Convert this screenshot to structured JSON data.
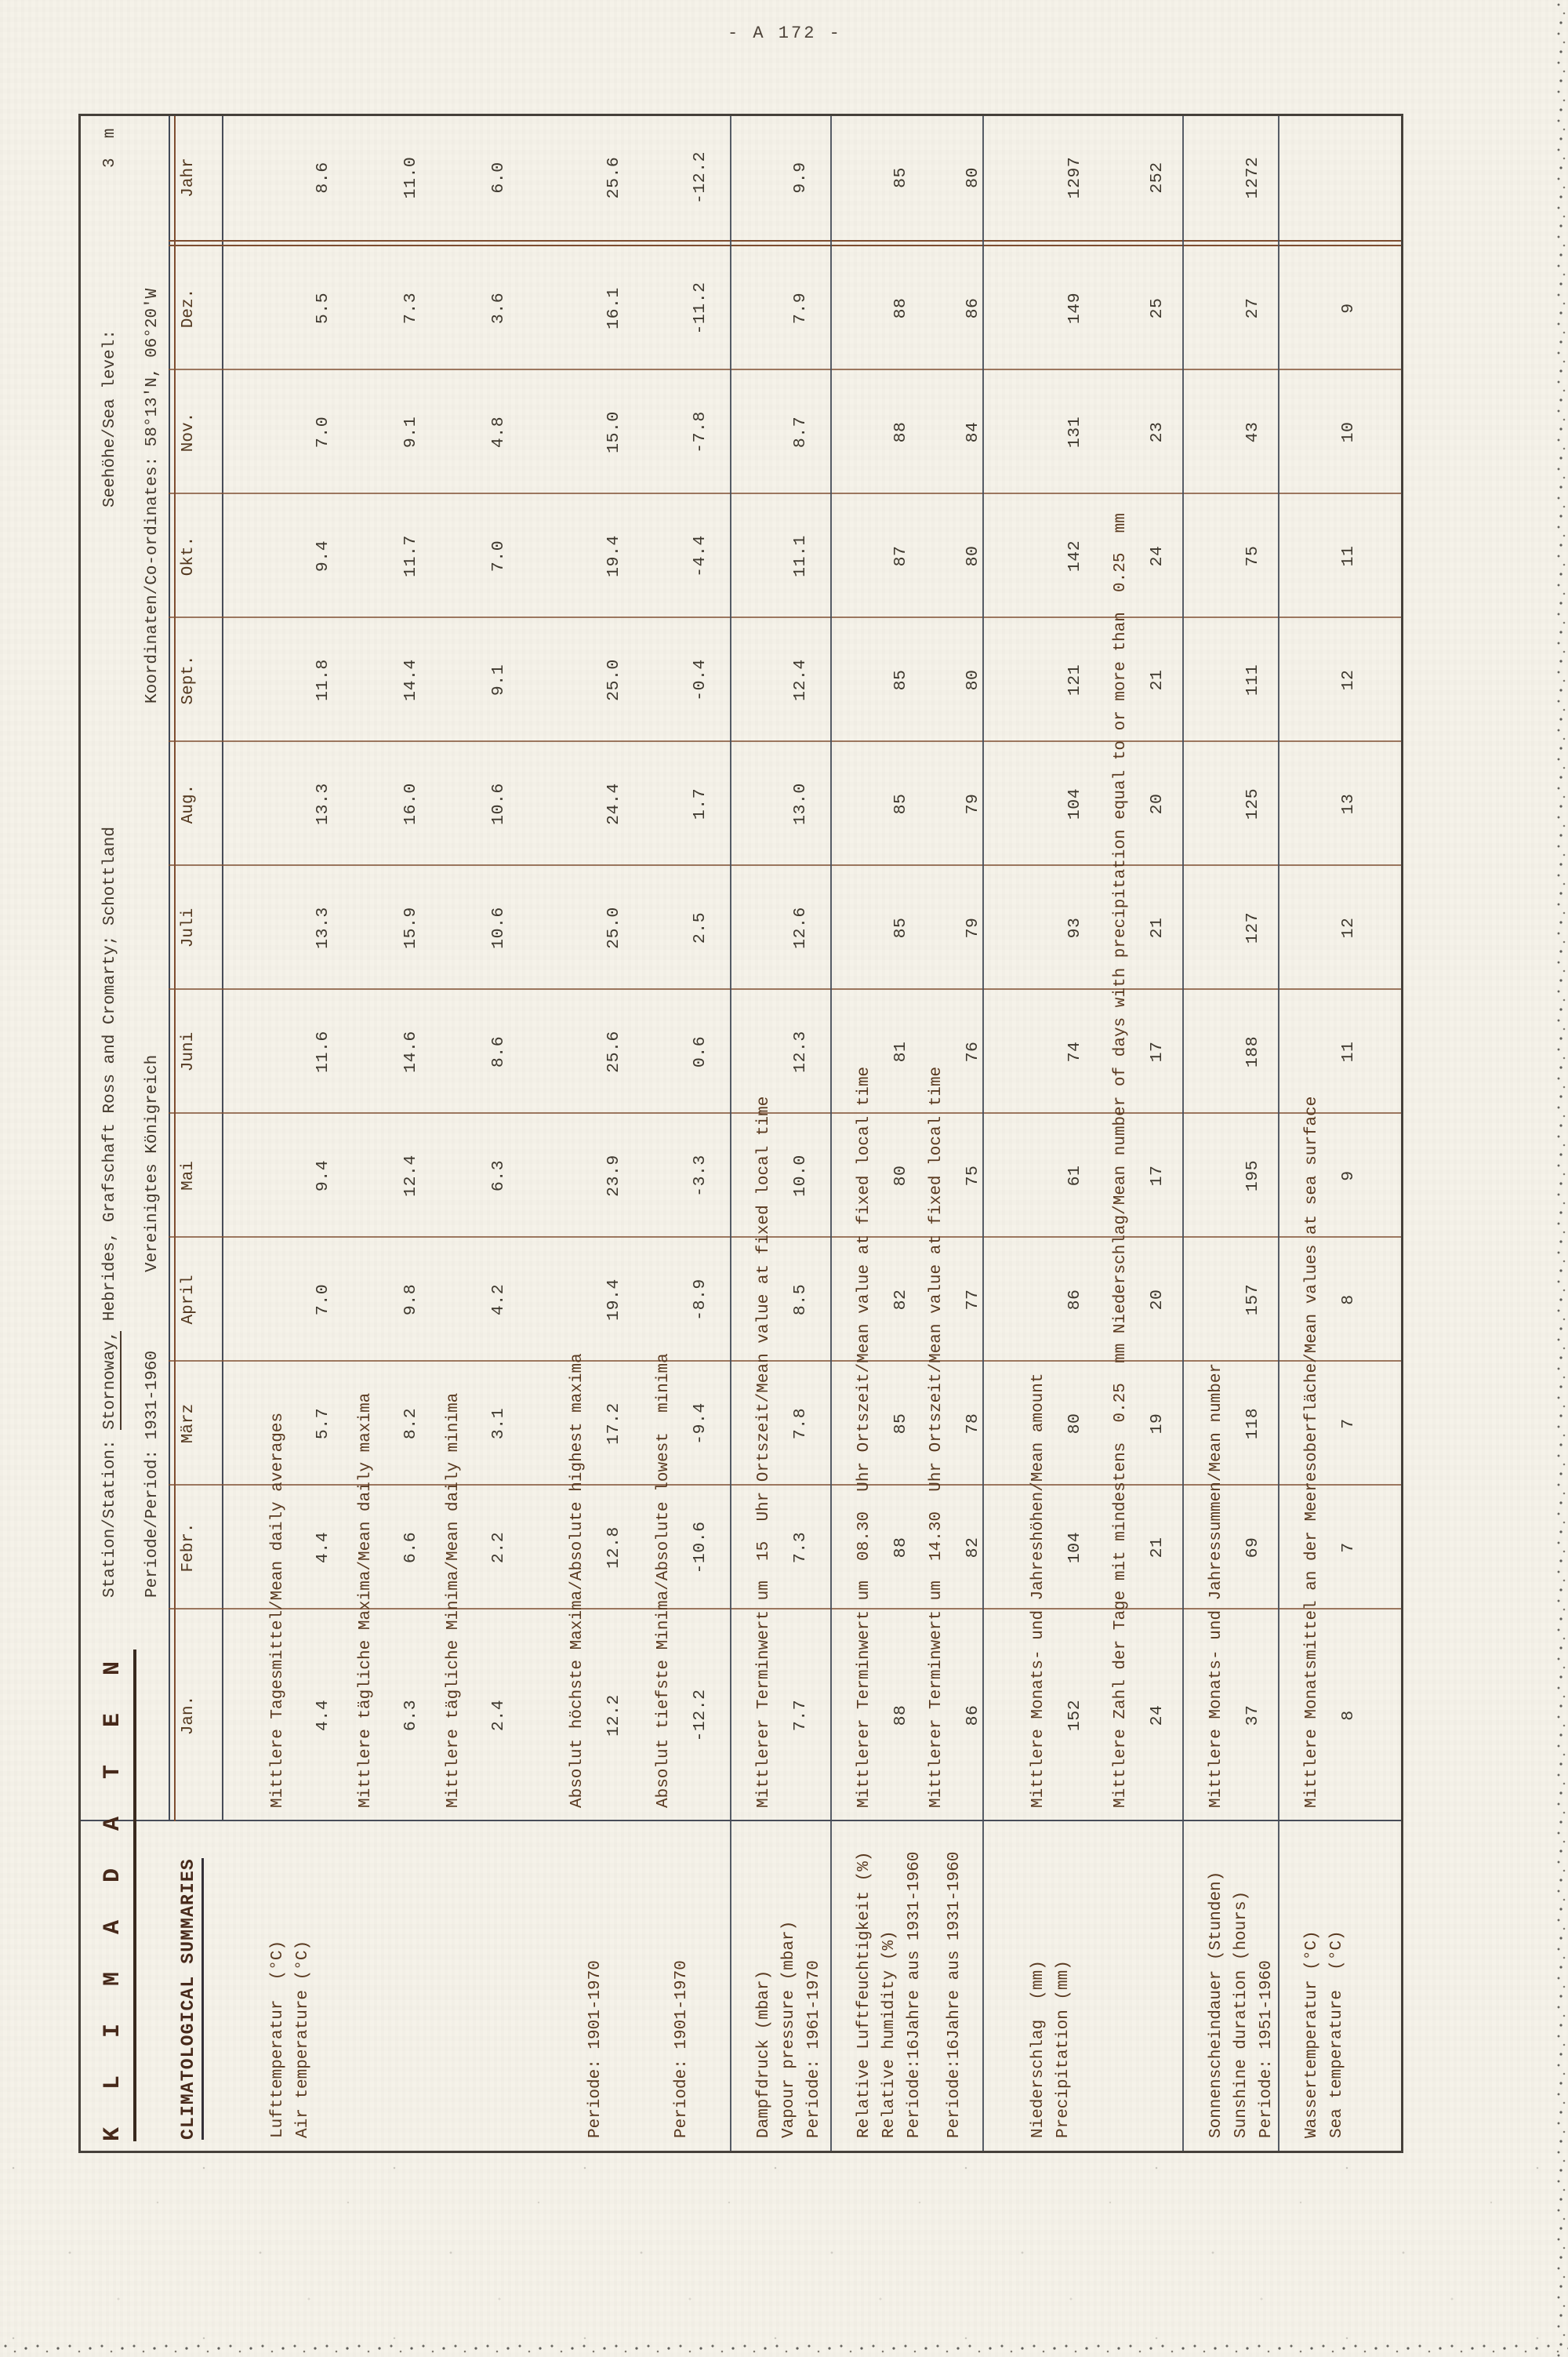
{
  "page_number": "- A 172 -",
  "table": {
    "title_de": "K L I M A D A T E N",
    "title_en": "CLIMATOLOGICAL SUMMARIES",
    "station_label": "Station/Station: ",
    "station_name": "Stornoway,",
    "station_rest": " Hebrides, Grafschaft Ross and Cromarty; Schottland",
    "sea_level_label": "Seehöhe/Sea level:",
    "sea_level_value": "3  m",
    "period_line": "Periode/Period: 1931-1960",
    "country": "Vereinigtes Königreich",
    "coords": "Koordinaten/Co-ordinates: 58°13'N, 06°20'W",
    "months": [
      "Jan.",
      "Febr.",
      "März",
      "April",
      "Mai",
      "Juni",
      "Juli",
      "Aug.",
      "Sept.",
      "Okt.",
      "Nov.",
      "Dez.",
      "Jahr"
    ],
    "groups": [
      {
        "label_lines": [
          "Lufttemperatur  (°C)",
          "Air temperature (°C)"
        ],
        "rows": [
          {
            "label": "Mittlere Tagesmittel/Mean daily averages",
            "values": [
              "4.4",
              "4.4",
              "5.7",
              "7.0",
              "9.4",
              "11.6",
              "13.3",
              "13.3",
              "11.8",
              "9.4",
              "7.0",
              "5.5",
              "8.6"
            ]
          },
          {
            "label": "Mittlere tägliche Maxima/Mean daily maxima",
            "values": [
              "6.3",
              "6.6",
              "8.2",
              "9.8",
              "12.4",
              "14.6",
              "15.9",
              "16.0",
              "14.4",
              "11.7",
              "9.1",
              "7.3",
              "11.0"
            ]
          },
          {
            "label": "Mittlere tägliche Minima/Mean daily minima",
            "values": [
              "2.4",
              "2.2",
              "3.1",
              "4.2",
              "6.3",
              "8.6",
              "10.6",
              "10.6",
              "9.1",
              "7.0",
              "4.8",
              "3.6",
              "6.0"
            ]
          }
        ]
      },
      {
        "label_lines": [
          "Periode: 1901-1970"
        ],
        "rows": [
          {
            "label": "Absolut höchste Maxima/Absolute highest maxima",
            "values": [
              "12.2",
              "12.8",
              "17.2",
              "19.4",
              "23.9",
              "25.6",
              "25.0",
              "24.4",
              "25.0",
              "19.4",
              "15.0",
              "16.1",
              "25.6"
            ]
          }
        ]
      },
      {
        "label_lines": [
          "Periode: 1901-1970"
        ],
        "rows": [
          {
            "label": "Absolut tiefste Minima/Absolute lowest  minima",
            "values": [
              "-12.2",
              "-10.6",
              "-9.4",
              "-8.9",
              "-3.3",
              "0.6",
              "2.5",
              "1.7",
              "-0.4",
              "-4.4",
              "-7.8",
              "-11.2",
              "-12.2"
            ]
          }
        ]
      },
      {
        "label_lines": [
          "Dampfdruck (mbar)",
          "Vapour pressure (mbar)",
          "Periode: 1961-1970"
        ],
        "rows": [
          {
            "label": "Mittlerer Terminwert um  15  Uhr Ortszeit/Mean value at fixed local time",
            "values": [
              "7.7",
              "7.3",
              "7.8",
              "8.5",
              "10.0",
              "12.3",
              "12.6",
              "13.0",
              "12.4",
              "11.1",
              "8.7",
              "7.9",
              "9.9"
            ]
          }
        ]
      },
      {
        "label_lines": [
          "Relative Luftfeuchtigkeit (%)",
          "Relative humidity (%)",
          "Periode:16Jahre aus 1931-1960"
        ],
        "rows": [
          {
            "label": "Mittlerer Terminwert um  08.30  Uhr Ortszeit/Mean value at fixed local time",
            "values": [
              "88",
              "88",
              "85",
              "82",
              "80",
              "81",
              "85",
              "85",
              "85",
              "87",
              "88",
              "88",
              "85"
            ]
          }
        ]
      },
      {
        "label_lines": [
          "Periode:16Jahre aus 1931-1960"
        ],
        "rows": [
          {
            "label": "Mittlerer Terminwert um  14.30  Uhr Ortszeit/Mean value at fixed local time",
            "values": [
              "86",
              "82",
              "78",
              "77",
              "75",
              "76",
              "79",
              "79",
              "80",
              "80",
              "84",
              "86",
              "80"
            ]
          }
        ]
      },
      {
        "label_lines": [
          "Niederschlag  (mm)",
          "Precipitation (mm)"
        ],
        "rows": [
          {
            "label": "Mittlere Monats- und Jahreshöhen/Mean amount",
            "values": [
              "152",
              "104",
              "80",
              "86",
              "61",
              "74",
              "93",
              "104",
              "121",
              "142",
              "131",
              "149",
              "1297"
            ]
          },
          {
            "label": "Mittlere Zahl der Tage mit mindestens  0.25  mm Niederschlag/Mean number of days with precipitation equal to or more than  0.25  mm",
            "values": [
              "24",
              "21",
              "19",
              "20",
              "17",
              "17",
              "21",
              "20",
              "21",
              "24",
              "23",
              "25",
              "252"
            ]
          }
        ]
      },
      {
        "label_lines": [
          "Sonnenscheindauer (Stunden)",
          "Sunshine duration (hours)",
          "Periode: 1951-1960"
        ],
        "rows": [
          {
            "label": "Mittlere Monats- und Jahressummen/Mean number",
            "values": [
              "37",
              "69",
              "118",
              "157",
              "195",
              "188",
              "127",
              "125",
              "111",
              "75",
              "43",
              "27",
              "1272"
            ]
          }
        ]
      },
      {
        "label_lines": [
          "Wassertemperatur (°C)",
          "Sea temperature  (°C)"
        ],
        "rows": [
          {
            "label": "Mittlere Monatsmittel an der Meeresoberfläche/Mean values at sea surface",
            "values": [
              "8",
              "7",
              "7",
              "8",
              "9",
              "11",
              "12",
              "13",
              "12",
              "11",
              "10",
              "9",
              ""
            ]
          }
        ]
      }
    ]
  }
}
